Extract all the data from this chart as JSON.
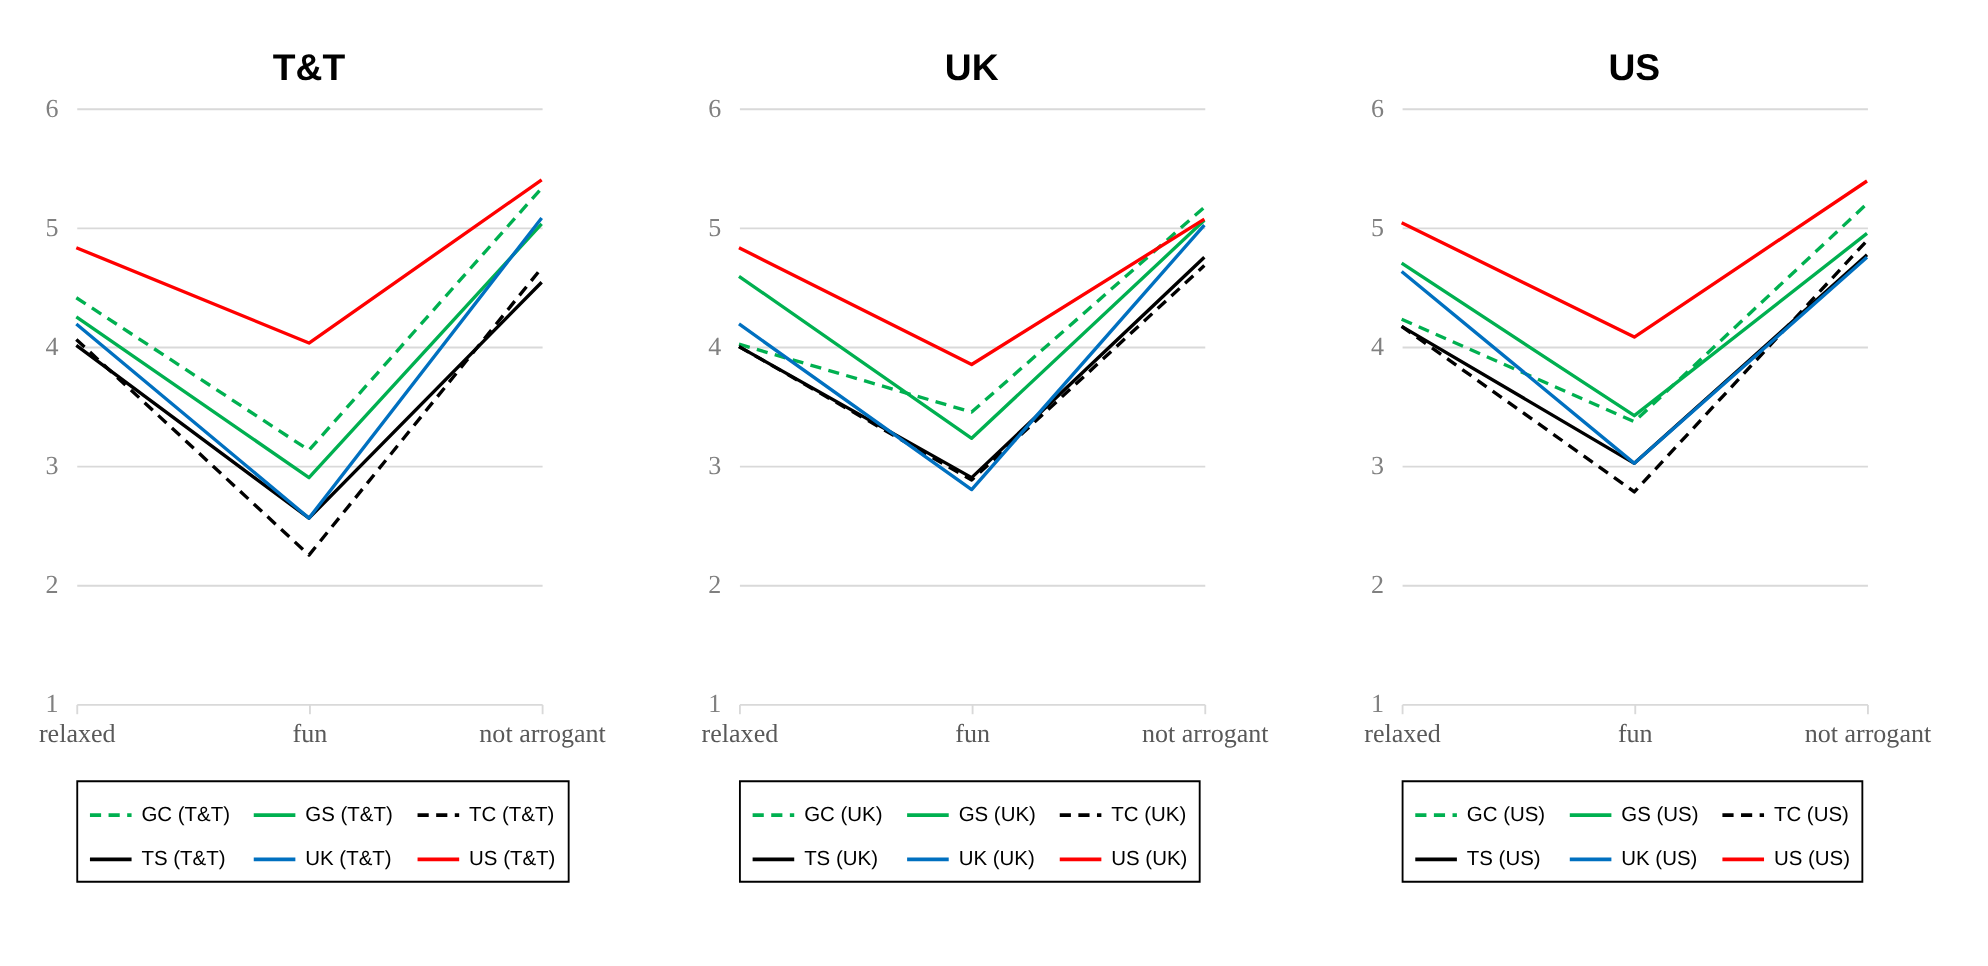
{
  "chart_data": [
    {
      "type": "line",
      "title": "T&T",
      "categories": [
        "relaxed",
        "fun",
        "not arrogant"
      ],
      "ylim": [
        1,
        6
      ],
      "yticks": [
        1,
        2,
        3,
        4,
        5,
        6
      ],
      "grid": "y",
      "legend": "bottom",
      "series": [
        {
          "name": "GC (T&T)",
          "color": "#00b050",
          "line_style": "dashed",
          "values": [
            4.41,
            3.13,
            5.33
          ]
        },
        {
          "name": "GS (T&T)",
          "color": "#00b050",
          "line_style": "solid",
          "values": [
            4.25,
            2.9,
            5.03
          ]
        },
        {
          "name": "TC (T&T)",
          "color": "#000000",
          "line_style": "dashed",
          "values": [
            4.06,
            2.25,
            4.66
          ]
        },
        {
          "name": "TS (T&T)",
          "color": "#000000",
          "line_style": "solid",
          "values": [
            4.01,
            2.56,
            4.54
          ]
        },
        {
          "name": "UK (T&T)",
          "color": "#0070c0",
          "line_style": "solid",
          "values": [
            4.19,
            2.56,
            5.08
          ]
        },
        {
          "name": "US (T&T)",
          "color": "#ff0000",
          "line_style": "solid",
          "values": [
            4.83,
            4.03,
            5.4
          ]
        }
      ]
    },
    {
      "type": "line",
      "title": "UK",
      "categories": [
        "relaxed",
        "fun",
        "not arrogant"
      ],
      "ylim": [
        1,
        6
      ],
      "yticks": [
        1,
        2,
        3,
        4,
        5,
        6
      ],
      "grid": "y",
      "legend": "bottom",
      "series": [
        {
          "name": "GC (UK)",
          "color": "#00b050",
          "line_style": "dashed",
          "values": [
            4.02,
            3.45,
            5.17
          ]
        },
        {
          "name": "GS (UK)",
          "color": "#00b050",
          "line_style": "solid",
          "values": [
            4.59,
            3.23,
            5.06
          ]
        },
        {
          "name": "TC (UK)",
          "color": "#000000",
          "line_style": "dashed",
          "values": [
            4.0,
            2.88,
            4.68
          ]
        },
        {
          "name": "TS (UK)",
          "color": "#000000",
          "line_style": "solid",
          "values": [
            4.0,
            2.9,
            4.75
          ]
        },
        {
          "name": "UK (UK)",
          "color": "#0070c0",
          "line_style": "solid",
          "values": [
            4.19,
            2.8,
            5.02
          ]
        },
        {
          "name": "US (UK)",
          "color": "#ff0000",
          "line_style": "solid",
          "values": [
            4.83,
            3.85,
            5.07
          ]
        }
      ]
    },
    {
      "type": "line",
      "title": "US",
      "categories": [
        "relaxed",
        "fun",
        "not arrogant"
      ],
      "ylim": [
        1,
        6
      ],
      "yticks": [
        1,
        2,
        3,
        4,
        5,
        6
      ],
      "grid": "y",
      "legend": "bottom",
      "series": [
        {
          "name": "GC (US)",
          "color": "#00b050",
          "line_style": "dashed",
          "values": [
            4.23,
            3.37,
            5.2
          ]
        },
        {
          "name": "GS (US)",
          "color": "#00b050",
          "line_style": "solid",
          "values": [
            4.7,
            3.42,
            4.95
          ]
        },
        {
          "name": "TC (US)",
          "color": "#000000",
          "line_style": "dashed",
          "values": [
            4.17,
            2.78,
            4.89
          ]
        },
        {
          "name": "TS (US)",
          "color": "#000000",
          "line_style": "solid",
          "values": [
            4.17,
            3.02,
            4.77
          ]
        },
        {
          "name": "UK (US)",
          "color": "#0070c0",
          "line_style": "solid",
          "values": [
            4.63,
            3.02,
            4.75
          ]
        },
        {
          "name": "US (US)",
          "color": "#ff0000",
          "line_style": "solid",
          "values": [
            5.04,
            4.08,
            5.39
          ]
        }
      ]
    }
  ]
}
